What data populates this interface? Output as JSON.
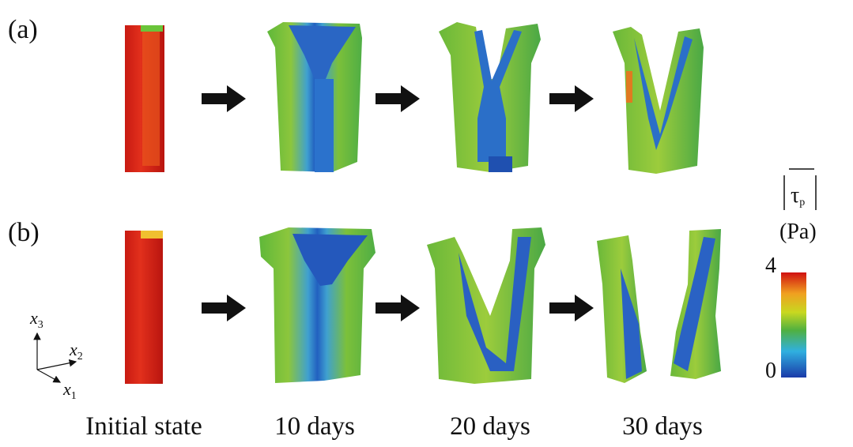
{
  "panels": [
    {
      "label": "(a)"
    },
    {
      "label": "(b)"
    }
  ],
  "stages": [
    "Initial state",
    "10 days",
    "20 days",
    "30 days"
  ],
  "colorbar": {
    "symbol": "τ",
    "symbol_sub": "p",
    "unit": "(Pa)",
    "max": 4,
    "min": 0
  },
  "axes": [
    {
      "base": "x",
      "sub": "3"
    },
    {
      "base": "x",
      "sub": "2"
    },
    {
      "base": "x",
      "sub": "1"
    }
  ]
}
